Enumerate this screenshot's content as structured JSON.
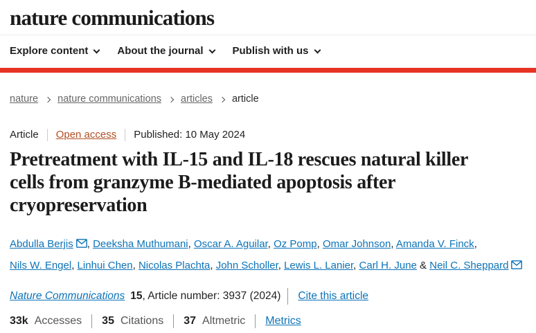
{
  "colors": {
    "accent_red": "#e63323",
    "link_blue": "#0c73b8",
    "open_access_orange": "#b04e23",
    "text_dark": "#222222",
    "text_gray": "#666666"
  },
  "header": {
    "logo": "nature communications",
    "nav_items": [
      {
        "label": "Explore content",
        "icon": "chevron-down-icon"
      },
      {
        "label": "About the journal",
        "icon": "chevron-down-icon"
      },
      {
        "label": "Publish with us",
        "icon": "chevron-down-icon"
      }
    ]
  },
  "breadcrumb": [
    {
      "label": "nature",
      "is_link": true
    },
    {
      "label": "nature communications",
      "is_link": true
    },
    {
      "label": "articles",
      "is_link": true
    },
    {
      "label": "article",
      "is_link": false
    }
  ],
  "article": {
    "meta": {
      "type_label": "Article",
      "access_label": "Open access",
      "published": "Published: 10 May 2024"
    },
    "title_lines": [
      "Pretreatment with IL-15 and IL-18 rescues natural killer",
      "cells from granzyme B-mediated apoptosis after",
      "cryopreservation"
    ],
    "title_full": "Pretreatment with IL-15 and IL-18 rescues natural killer cells from granzyme B-mediated apoptosis after cryopreservation",
    "authors": [
      {
        "name": "Abdulla Berjis",
        "email": true
      },
      {
        "name": "Deeksha Muthumani",
        "email": false
      },
      {
        "name": "Oscar A. Aguilar",
        "email": false
      },
      {
        "name": "Oz Pomp",
        "email": false
      },
      {
        "name": "Omar Johnson",
        "email": false
      },
      {
        "name": "Amanda V. Finck",
        "email": false
      },
      {
        "name": "Nils W. Engel",
        "email": false
      },
      {
        "name": "Linhui Chen",
        "email": false
      },
      {
        "name": "Nicolas Plachta",
        "email": false
      },
      {
        "name": "John Scholler",
        "email": false
      },
      {
        "name": "Lewis L. Lanier",
        "email": false
      },
      {
        "name": "Carl H. June",
        "email": false
      },
      {
        "name": "Neil C. Sheppard",
        "email": true
      }
    ],
    "author_separators": {
      "comma": ", ",
      "amp": " & "
    },
    "citation": {
      "journal_link": "Nature Communications",
      "volume": "15",
      "suffix": ", Article number: 3937 (2024)",
      "cite_link": "Cite this article"
    },
    "metrics": [
      {
        "value": "33k",
        "label": "Accesses"
      },
      {
        "value": "35",
        "label": "Citations"
      },
      {
        "value": "37",
        "label": "Altmetric"
      }
    ],
    "metrics_link": "Metrics"
  }
}
